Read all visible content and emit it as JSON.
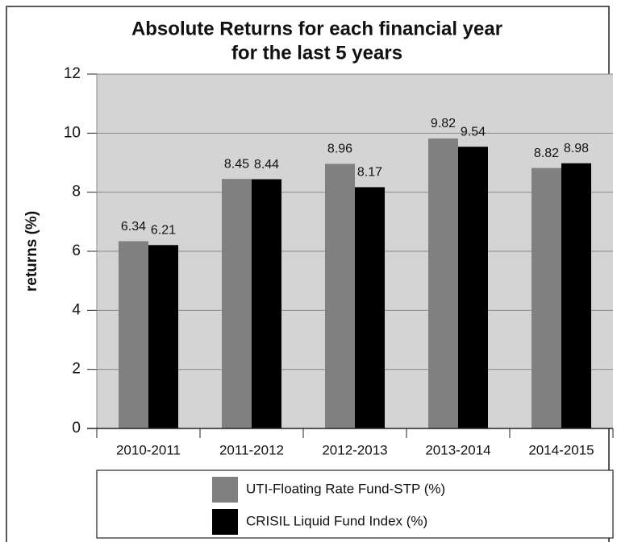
{
  "chart_data": {
    "type": "bar",
    "title": [
      "Absolute Returns for each financial year",
      "for the last 5 years"
    ],
    "y_label": "returns (%)",
    "categories": [
      "2010-2011",
      "2011-2012",
      "2012-2013",
      "2013-2014",
      "2014-2015"
    ],
    "series": [
      {
        "name": "UTI-Floating Rate Fund-STP (%)",
        "color": "#808080",
        "values": [
          6.34,
          8.45,
          8.96,
          9.82,
          8.82
        ]
      },
      {
        "name": "CRISIL Liquid Fund Index (%)",
        "color": "#000000",
        "values": [
          6.21,
          8.44,
          8.17,
          9.54,
          8.98
        ]
      }
    ],
    "ylim": [
      0,
      12
    ],
    "yticks": [
      0,
      2,
      4,
      6,
      8,
      10,
      12
    ],
    "grid": true,
    "legend": "bottom"
  }
}
